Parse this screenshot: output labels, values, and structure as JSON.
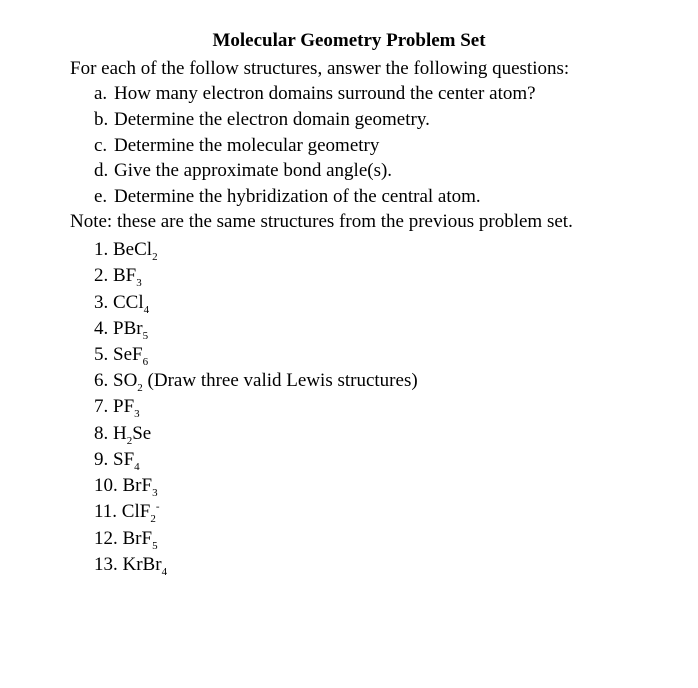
{
  "title": "Molecular Geometry Problem Set",
  "intro": "For each of the follow structures, answer the following questions:",
  "subitems": {
    "a": {
      "marker": "a.",
      "text": "How many electron domains surround the center atom?"
    },
    "b": {
      "marker": "b.",
      "text": "Determine the electron domain geometry."
    },
    "c": {
      "marker": "c.",
      "text": "Determine the molecular geometry"
    },
    "d": {
      "marker": "d.",
      "text": "Give the approximate bond angle(s)."
    },
    "e": {
      "marker": "e.",
      "text": "Determine the hybridization of the central atom."
    }
  },
  "note": "Note: these are the same structures from the previous problem set.",
  "items": {
    "i1": {
      "num": "1. ",
      "formula": "BeCl",
      "sub": "2",
      "extra": ""
    },
    "i2": {
      "num": "2. ",
      "formula": "BF",
      "sub": "3",
      "extra": ""
    },
    "i3": {
      "num": "3. ",
      "formula": "CCl",
      "sub": "4",
      "extra": ""
    },
    "i4": {
      "num": "4. ",
      "formula": "PBr",
      "sub": "5",
      "extra": ""
    },
    "i5": {
      "num": "5. ",
      "formula": "SeF",
      "sub": "6",
      "extra": ""
    },
    "i6": {
      "num": "6. ",
      "formula": "SO",
      "sub": "2",
      "extra": " (Draw three valid Lewis structures)"
    },
    "i7": {
      "num": "7. ",
      "formula": "PF",
      "sub": "3",
      "extra": ""
    },
    "i8": {
      "num": "8. ",
      "pre": "H",
      "presub": "2",
      "formula": "Se",
      "sub": "",
      "extra": ""
    },
    "i9": {
      "num": "9. ",
      "formula": "SF",
      "sub": "4",
      "extra": ""
    },
    "i10": {
      "num": "10. ",
      "formula": "BrF",
      "sub": "3",
      "extra": ""
    },
    "i11": {
      "num": "11. ",
      "formula": "ClF",
      "sub": "2",
      "sup": "-",
      "extra": ""
    },
    "i12": {
      "num": "12. ",
      "formula": "BrF",
      "sub": "5",
      "extra": ""
    },
    "i13": {
      "num": "13. ",
      "formula": "KrBr",
      "sub": "4",
      "extra": ""
    }
  }
}
